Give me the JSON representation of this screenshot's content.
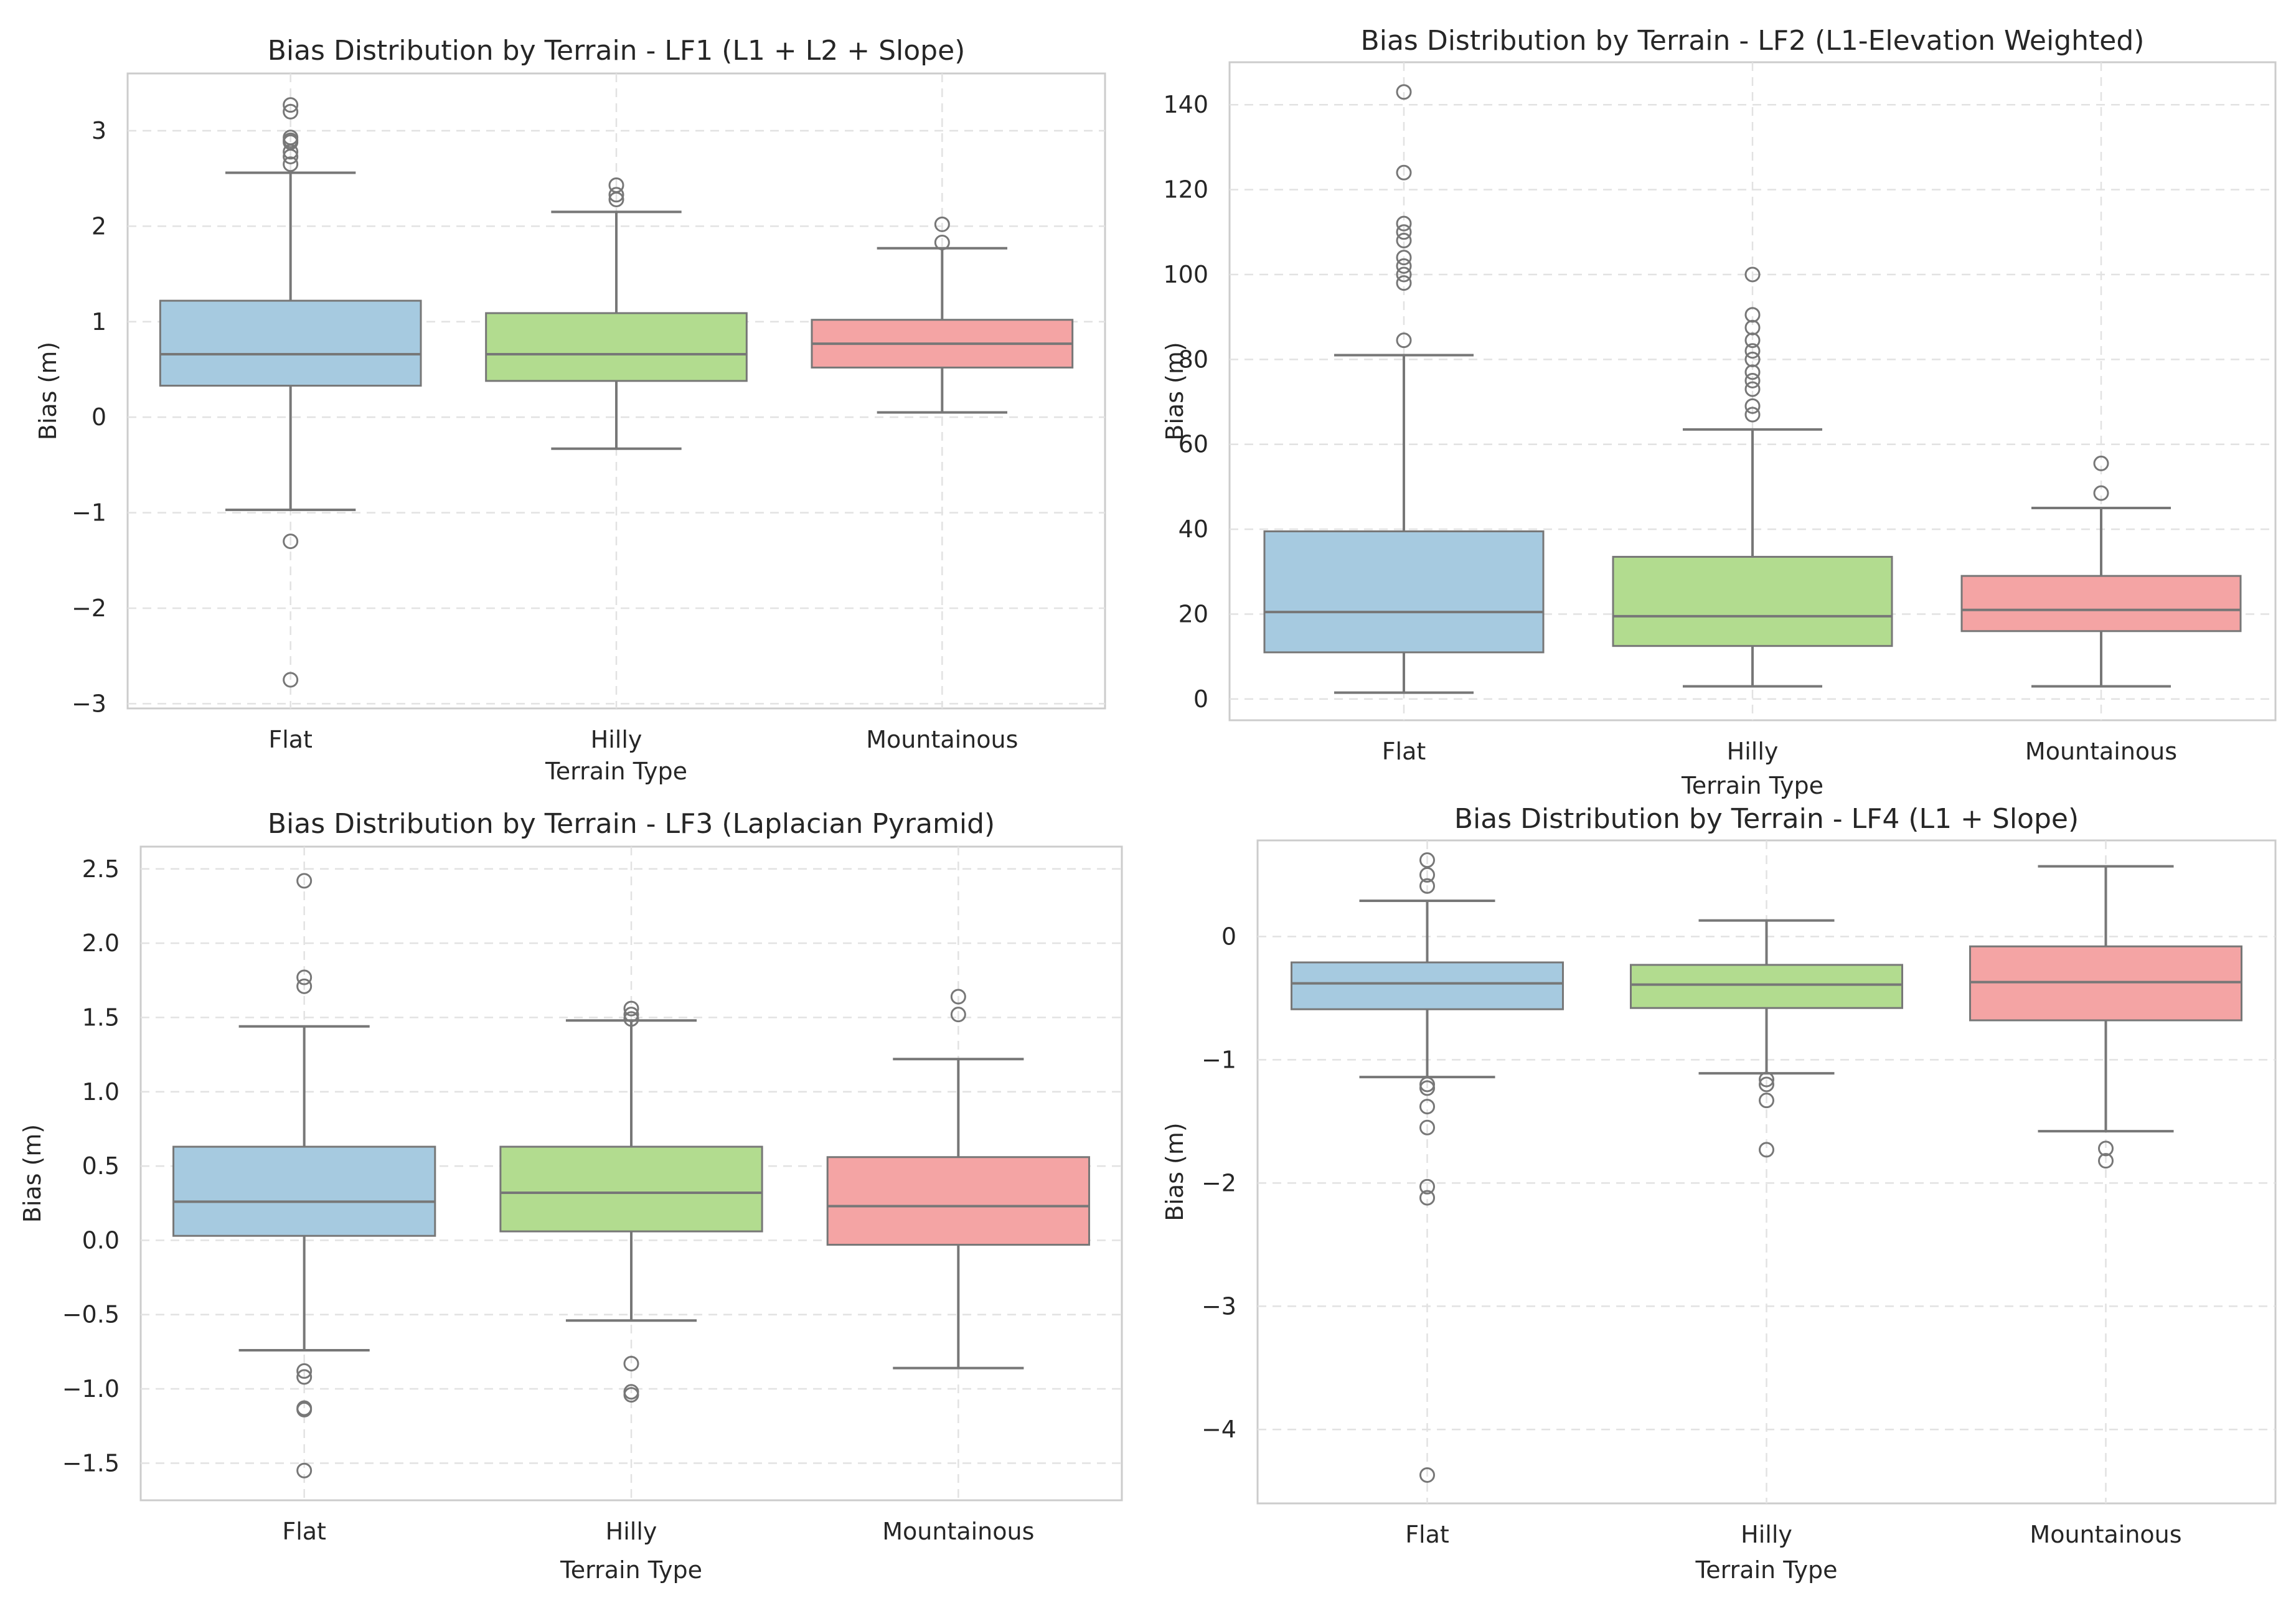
{
  "colors": {
    "Flat": "#a6cae0",
    "Hilly": "#b2dc8f",
    "Mountainous": "#f4a4a4"
  },
  "chart_data": [
    {
      "type": "box",
      "title": "Bias Distribution by Terrain - LF1 (L1 + L2 + Slope)",
      "xlabel": "Terrain Type",
      "ylabel": "Bias (m)",
      "ylim": [
        -3.05,
        3.6
      ],
      "yticks": [
        -3,
        -2,
        -1,
        0,
        1,
        2,
        3
      ],
      "ytick_labels": [
        "−3",
        "−2",
        "−1",
        "0",
        "1",
        "2",
        "3"
      ],
      "categories": [
        "Flat",
        "Hilly",
        "Mountainous"
      ],
      "boxes": [
        {
          "category": "Flat",
          "whislo": -0.97,
          "q1": 0.33,
          "med": 0.66,
          "q3": 1.22,
          "whishi": 2.56,
          "fliers": [
            3.27,
            3.2,
            2.93,
            2.9,
            2.88,
            2.78,
            2.73,
            2.65,
            -1.3,
            -2.75
          ]
        },
        {
          "category": "Hilly",
          "whislo": -0.33,
          "q1": 0.38,
          "med": 0.66,
          "q3": 1.09,
          "whishi": 2.15,
          "fliers": [
            2.43,
            2.33,
            2.28
          ]
        },
        {
          "category": "Mountainous",
          "whislo": 0.05,
          "q1": 0.52,
          "med": 0.77,
          "q3": 1.02,
          "whishi": 1.77,
          "fliers": [
            2.02,
            1.83
          ]
        }
      ]
    },
    {
      "type": "box",
      "title": "Bias Distribution by Terrain - LF2 (L1-Elevation Weighted)",
      "xlabel": "Terrain Type",
      "ylabel": "Bias (m)",
      "ylim": [
        -5,
        150
      ],
      "yticks": [
        0,
        20,
        40,
        60,
        80,
        100,
        120,
        140
      ],
      "ytick_labels": [
        "0",
        "20",
        "40",
        "60",
        "80",
        "100",
        "120",
        "140"
      ],
      "categories": [
        "Flat",
        "Hilly",
        "Mountainous"
      ],
      "boxes": [
        {
          "category": "Flat",
          "whislo": 1.5,
          "q1": 11,
          "med": 20.5,
          "q3": 39.5,
          "whishi": 81,
          "fliers": [
            84.5,
            98,
            100,
            102,
            104,
            108,
            110,
            112,
            124,
            143
          ]
        },
        {
          "category": "Hilly",
          "whislo": 3,
          "q1": 12.5,
          "med": 19.5,
          "q3": 33.5,
          "whishi": 63.5,
          "fliers": [
            67,
            69,
            73,
            75,
            77,
            80,
            82,
            84.5,
            87.5,
            90.5,
            100
          ]
        },
        {
          "category": "Mountainous",
          "whislo": 3,
          "q1": 16,
          "med": 21,
          "q3": 29,
          "whishi": 45,
          "fliers": [
            48.5,
            55.5
          ]
        }
      ]
    },
    {
      "type": "box",
      "title": "Bias Distribution by Terrain - LF3 (Laplacian Pyramid)",
      "xlabel": "Terrain Type",
      "ylabel": "Bias (m)",
      "ylim": [
        -1.75,
        2.65
      ],
      "yticks": [
        -1.5,
        -1.0,
        -0.5,
        0.0,
        0.5,
        1.0,
        1.5,
        2.0,
        2.5
      ],
      "ytick_labels": [
        "−1.5",
        "−1.0",
        "−0.5",
        "0.0",
        "0.5",
        "1.0",
        "1.5",
        "2.0",
        "2.5"
      ],
      "categories": [
        "Flat",
        "Hilly",
        "Mountainous"
      ],
      "boxes": [
        {
          "category": "Flat",
          "whislo": -0.74,
          "q1": 0.03,
          "med": 0.26,
          "q3": 0.63,
          "whishi": 1.44,
          "fliers": [
            2.42,
            1.77,
            1.71,
            -0.88,
            -0.92,
            -1.13,
            -1.14,
            -1.55
          ]
        },
        {
          "category": "Hilly",
          "whislo": -0.54,
          "q1": 0.06,
          "med": 0.32,
          "q3": 0.63,
          "whishi": 1.48,
          "fliers": [
            1.56,
            1.52,
            1.49,
            -0.83,
            -1.02,
            -1.04
          ]
        },
        {
          "category": "Mountainous",
          "whislo": -0.86,
          "q1": -0.03,
          "med": 0.23,
          "q3": 0.56,
          "whishi": 1.22,
          "fliers": [
            1.64,
            1.52
          ]
        }
      ]
    },
    {
      "type": "box",
      "title": "Bias Distribution by Terrain - LF4 (L1 + Slope)",
      "xlabel": "Terrain Type",
      "ylabel": "Bias (m)",
      "ylim": [
        -4.6,
        0.78
      ],
      "yticks": [
        -4,
        -3,
        -2,
        -1,
        0
      ],
      "ytick_labels": [
        "−4",
        "−3",
        "−2",
        "−1",
        "0"
      ],
      "categories": [
        "Flat",
        "Hilly",
        "Mountainous"
      ],
      "boxes": [
        {
          "category": "Flat",
          "whislo": -1.14,
          "q1": -0.59,
          "med": -0.38,
          "q3": -0.21,
          "whishi": 0.29,
          "fliers": [
            0.62,
            0.5,
            0.41,
            -1.2,
            -1.23,
            -1.38,
            -1.55,
            -2.03,
            -2.12,
            -4.37
          ]
        },
        {
          "category": "Hilly",
          "whislo": -1.11,
          "q1": -0.58,
          "med": -0.39,
          "q3": -0.23,
          "whishi": 0.13,
          "fliers": [
            -1.16,
            -1.2,
            -1.33,
            -1.73
          ]
        },
        {
          "category": "Mountainous",
          "whislo": -1.58,
          "q1": -0.68,
          "med": -0.37,
          "q3": -0.08,
          "whishi": 0.57,
          "fliers": [
            -1.72,
            -1.82
          ]
        }
      ]
    }
  ]
}
